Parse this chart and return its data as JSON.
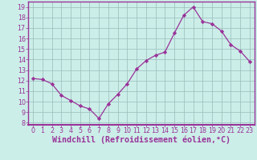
{
  "x": [
    0,
    1,
    2,
    3,
    4,
    5,
    6,
    7,
    8,
    9,
    10,
    11,
    12,
    13,
    14,
    15,
    16,
    17,
    18,
    19,
    20,
    21,
    22,
    23
  ],
  "y": [
    12.2,
    12.1,
    11.7,
    10.6,
    10.1,
    9.6,
    9.3,
    8.4,
    9.8,
    10.7,
    11.7,
    13.1,
    13.9,
    14.4,
    14.7,
    16.5,
    18.2,
    19.0,
    17.6,
    17.4,
    16.7,
    15.4,
    14.8,
    13.8
  ],
  "line_color": "#993399",
  "marker": "D",
  "marker_size": 2.2,
  "bg_color": "#cceee8",
  "plot_bg_color": "#cceee8",
  "grid_color": "#99bbbb",
  "xlabel": "Windchill (Refroidissement éolien,°C)",
  "ylim": [
    7.8,
    19.5
  ],
  "yticks": [
    8,
    9,
    10,
    11,
    12,
    13,
    14,
    15,
    16,
    17,
    18,
    19
  ],
  "xticks": [
    0,
    1,
    2,
    3,
    4,
    5,
    6,
    7,
    8,
    9,
    10,
    11,
    12,
    13,
    14,
    15,
    16,
    17,
    18,
    19,
    20,
    21,
    22,
    23
  ],
  "tick_fontsize": 5.8,
  "xlabel_fontsize": 7.2,
  "label_color": "#993399",
  "spine_color": "#993399",
  "linewidth": 0.9
}
